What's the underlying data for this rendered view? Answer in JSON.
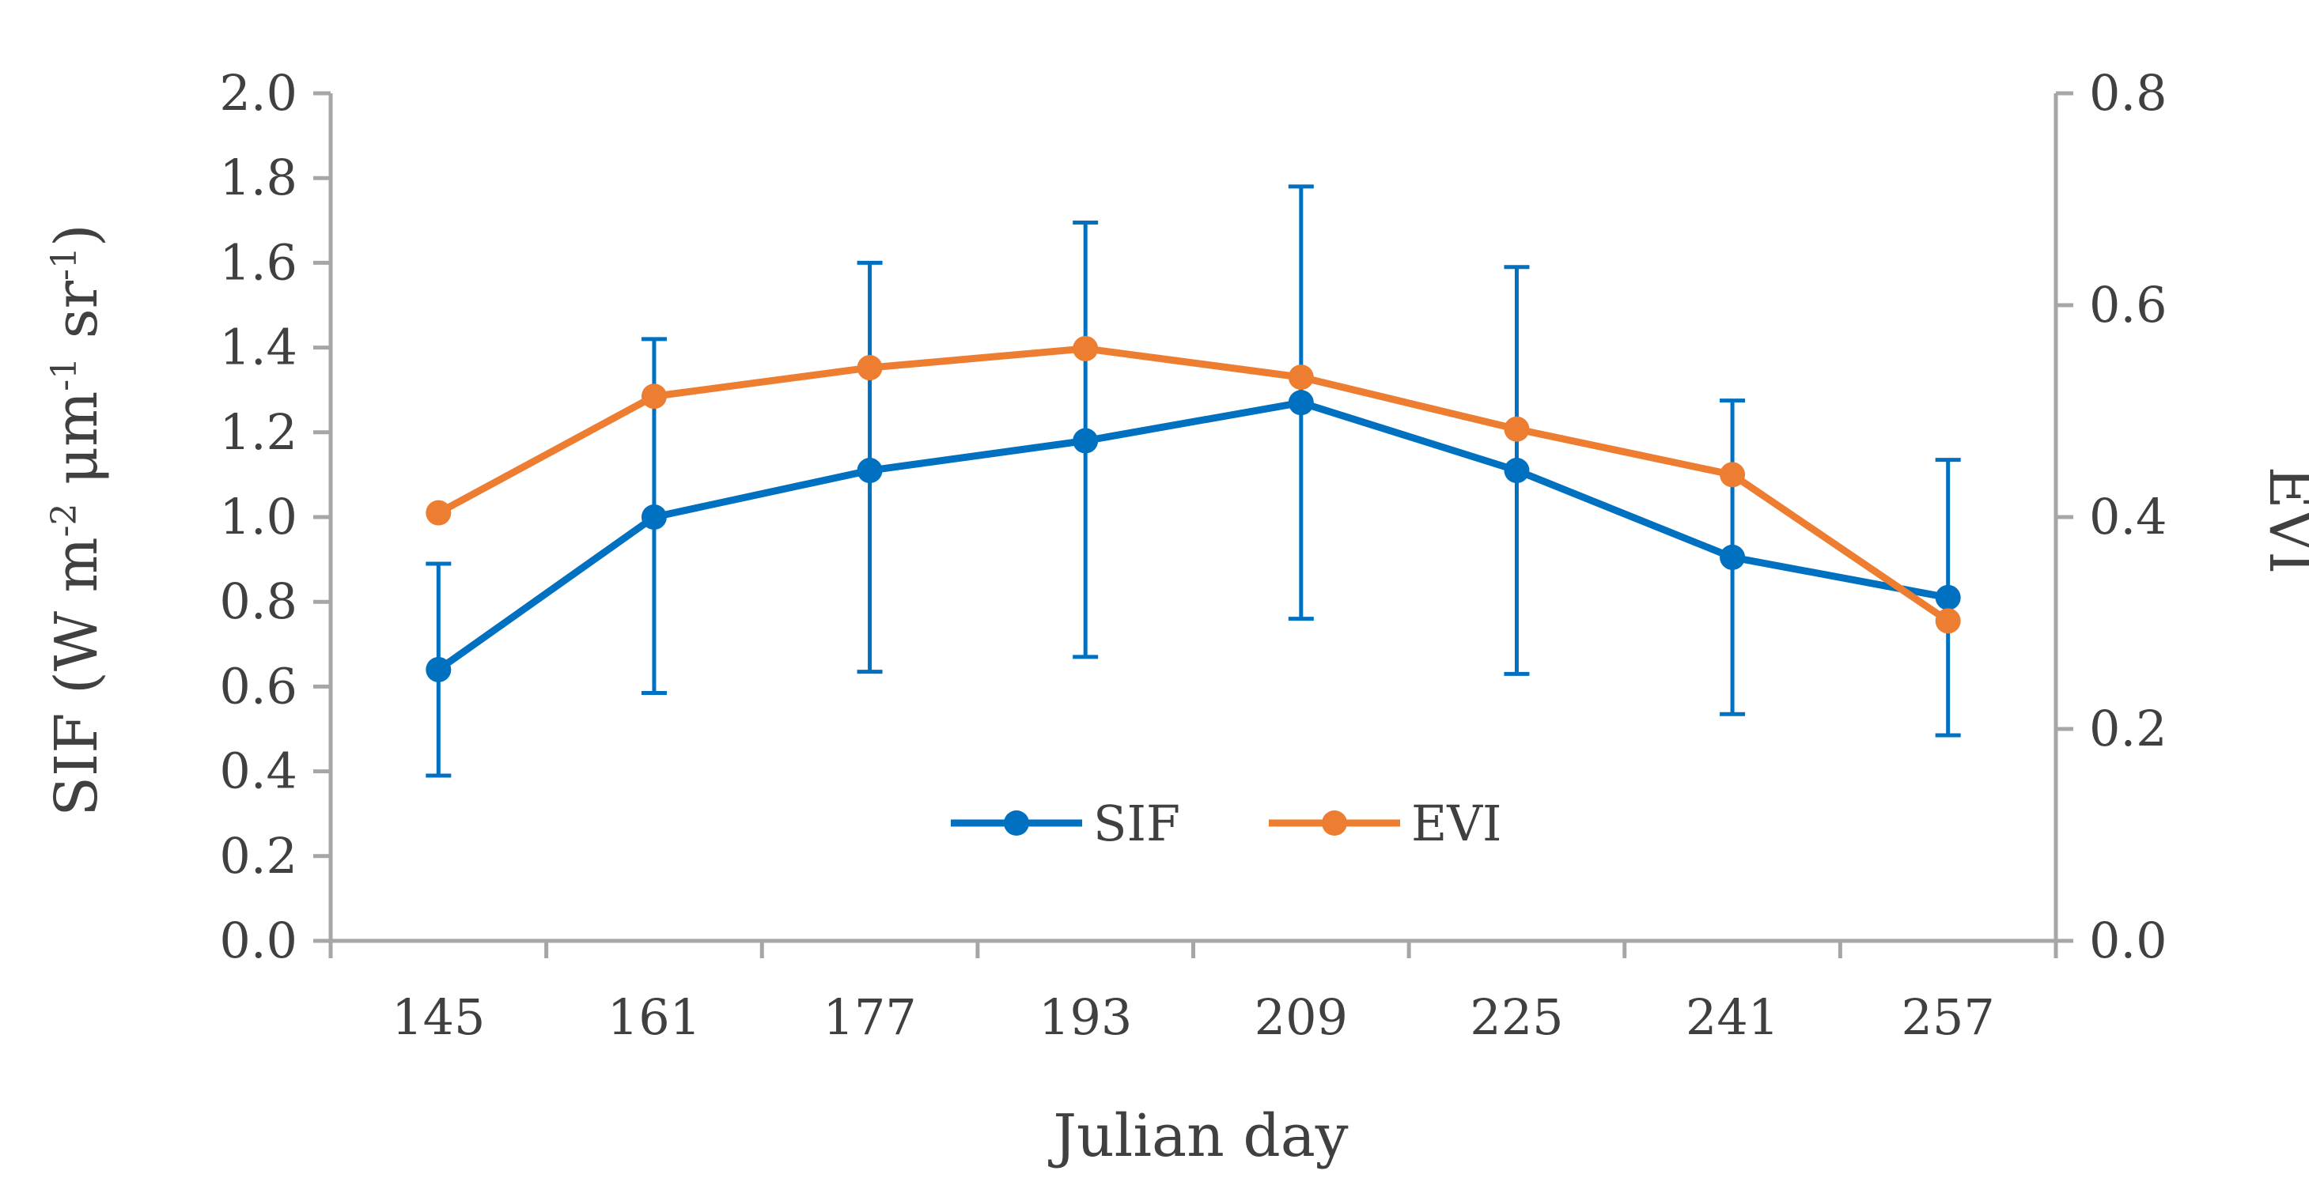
{
  "chart_data": {
    "type": "line",
    "title": "",
    "xlabel": "Julian day",
    "ylabel": "SIF (W m",
    "ylabel_parts": [
      "SIF (W m",
      "-2",
      " μm",
      "-1",
      " sr",
      "-1",
      ")"
    ],
    "y2label": "EVI",
    "categories": [
      "145",
      "161",
      "177",
      "193",
      "209",
      "225",
      "241",
      "257"
    ],
    "ylim": [
      0,
      2.0
    ],
    "y_ticks": [
      "0.0",
      "0.2",
      "0.4",
      "0.6",
      "0.8",
      "1.0",
      "1.2",
      "1.4",
      "1.6",
      "1.8",
      "2.0"
    ],
    "y2lim": [
      0,
      0.8
    ],
    "y2_ticks": [
      "0.0",
      "0.2",
      "0.4",
      "0.6",
      "0.8"
    ],
    "grid": false,
    "legend_position": "bottom-center",
    "series": [
      {
        "name": "SIF",
        "axis": "left",
        "color": "#0070C0",
        "values": [
          0.64,
          1.0,
          1.11,
          1.18,
          1.27,
          1.11,
          0.905,
          0.81
        ],
        "error_low": [
          0.39,
          0.585,
          0.635,
          0.67,
          0.76,
          0.63,
          0.535,
          0.485
        ],
        "error_high": [
          0.89,
          1.42,
          1.6,
          1.695,
          1.78,
          1.59,
          1.275,
          1.135
        ]
      },
      {
        "name": "EVI",
        "axis": "right",
        "color": "#ED7D31",
        "values": [
          0.404,
          0.514,
          0.541,
          0.559,
          0.532,
          0.483,
          0.44,
          0.302
        ]
      }
    ]
  }
}
